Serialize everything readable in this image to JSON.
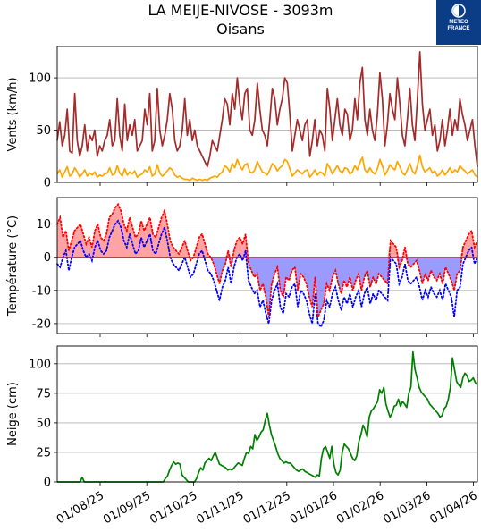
{
  "header": {
    "title": "LA MEIJE-NIVOSE - 3093m",
    "subtitle": "Oisans",
    "logo_line1": "METEO",
    "logo_line2": "FRANCE",
    "logo_color": "#0a3d86"
  },
  "chart_data": [
    {
      "type": "line",
      "ylabel": "Vents (km/h)",
      "ylim": [
        0,
        130
      ],
      "yticks": [
        0,
        50,
        100
      ],
      "grid": true,
      "series": [
        {
          "color": "#a52a2a",
          "values": [
            40,
            58,
            35,
            45,
            70,
            30,
            28,
            85,
            40,
            25,
            35,
            55,
            30,
            45,
            40,
            50,
            25,
            35,
            30,
            40,
            45,
            60,
            35,
            40,
            80,
            45,
            30,
            75,
            40,
            55,
            45,
            60,
            30,
            35,
            40,
            70,
            55,
            85,
            30,
            40,
            90,
            50,
            35,
            45,
            60,
            85,
            70,
            40,
            30,
            35,
            50,
            80,
            45,
            60,
            40,
            50,
            35,
            30,
            25,
            20,
            15,
            25,
            40,
            35,
            30,
            45,
            60,
            80,
            75,
            55,
            85,
            70,
            100,
            75,
            60,
            85,
            90,
            50,
            45,
            60,
            95,
            70,
            50,
            45,
            35,
            60,
            90,
            80,
            55,
            70,
            80,
            100,
            95,
            65,
            30,
            45,
            60,
            50,
            40,
            55,
            60,
            25,
            40,
            60,
            35,
            50,
            45,
            30,
            90,
            70,
            40,
            60,
            80,
            55,
            45,
            70,
            65,
            40,
            50,
            80,
            60,
            95,
            110,
            60,
            45,
            70,
            50,
            40,
            65,
            105,
            80,
            35,
            55,
            85,
            70,
            60,
            100,
            75,
            45,
            35,
            60,
            90,
            55,
            40,
            80,
            125,
            75,
            50,
            60,
            70,
            45,
            55,
            30,
            40,
            60,
            35,
            50,
            70,
            45,
            60,
            50,
            80,
            65,
            55,
            40,
            50,
            60,
            35,
            15
          ]
        },
        {
          "color": "#ffa500",
          "values": [
            8,
            12,
            5,
            10,
            15,
            6,
            8,
            14,
            10,
            5,
            8,
            12,
            6,
            9,
            7,
            10,
            5,
            7,
            6,
            8,
            9,
            14,
            7,
            8,
            16,
            9,
            6,
            13,
            7,
            10,
            8,
            11,
            5,
            7,
            8,
            12,
            10,
            15,
            6,
            8,
            17,
            9,
            6,
            8,
            11,
            14,
            12,
            7,
            5,
            6,
            4,
            3,
            3,
            2,
            4,
            3,
            2,
            3,
            2,
            3,
            2,
            4,
            5,
            6,
            5,
            8,
            10,
            16,
            14,
            10,
            18,
            14,
            22,
            16,
            12,
            17,
            18,
            10,
            9,
            12,
            20,
            15,
            10,
            9,
            7,
            12,
            18,
            16,
            11,
            14,
            16,
            22,
            20,
            13,
            6,
            9,
            12,
            10,
            8,
            11,
            12,
            5,
            8,
            12,
            7,
            10,
            9,
            6,
            18,
            14,
            8,
            12,
            16,
            11,
            9,
            14,
            13,
            8,
            10,
            16,
            12,
            19,
            24,
            12,
            9,
            14,
            10,
            8,
            13,
            22,
            16,
            7,
            11,
            17,
            14,
            12,
            20,
            15,
            9,
            7,
            12,
            18,
            11,
            8,
            16,
            26,
            15,
            10,
            12,
            14,
            9,
            11,
            6,
            8,
            12,
            7,
            10,
            14,
            9,
            12,
            10,
            16,
            13,
            11,
            8,
            10,
            12,
            7,
            5
          ]
        }
      ]
    },
    {
      "type": "area",
      "ylabel": "Température (°C)",
      "ylim": [
        -23,
        18
      ],
      "yticks": [
        -20,
        -10,
        0,
        10
      ],
      "grid": true,
      "series": [
        {
          "name": "",
          "color": "#ff0000",
          "values": [
            10,
            12,
            6,
            8,
            2,
            5,
            8,
            9,
            10,
            7,
            4,
            6,
            3,
            8,
            10,
            6,
            5,
            7,
            12,
            13,
            15,
            16,
            14,
            10,
            8,
            12,
            9,
            6,
            7,
            11,
            8,
            10,
            12,
            7,
            6,
            9,
            12,
            14,
            10,
            5,
            3,
            2,
            1,
            3,
            5,
            2,
            -1,
            0,
            3,
            6,
            7,
            4,
            1,
            0,
            -2,
            -5,
            -8,
            -4,
            -2,
            2,
            -3,
            2,
            5,
            6,
            4,
            7,
            -2,
            -4,
            -6,
            -5,
            -10,
            -8,
            -12,
            -18,
            -8,
            -5,
            -3,
            -10,
            -12,
            -6,
            -7,
            -4,
            -3,
            -10,
            -5,
            -6,
            -8,
            -12,
            -15,
            -6,
            -18,
            -16,
            -14,
            -8,
            -10,
            -6,
            -4,
            -8,
            -11,
            -7,
            -9,
            -6,
            -10,
            -7,
            -5,
            -10,
            -6,
            -4,
            -9,
            -6,
            -8,
            -5,
            -6,
            -7,
            -8,
            5,
            4,
            3,
            -3,
            -1,
            3,
            -2,
            -3,
            -2,
            -1,
            -4,
            -8,
            -5,
            -7,
            -4,
            -6,
            -7,
            -5,
            -8,
            -3,
            -5,
            -7,
            -10,
            -5,
            -4,
            3,
            5,
            7,
            8,
            3,
            5
          ],
          "min_color": "#0000ff",
          "min_values": [
            -2,
            -3,
            0,
            2,
            -4,
            0,
            3,
            4,
            5,
            2,
            0,
            1,
            -1,
            3,
            5,
            2,
            1,
            2,
            6,
            8,
            10,
            11,
            9,
            5,
            3,
            7,
            4,
            1,
            2,
            6,
            3,
            5,
            7,
            2,
            1,
            4,
            7,
            9,
            5,
            0,
            -2,
            -3,
            -4,
            -2,
            0,
            -3,
            -6,
            -5,
            -2,
            1,
            2,
            -1,
            -4,
            -5,
            -7,
            -10,
            -13,
            -9,
            -7,
            -3,
            -8,
            -3,
            0,
            1,
            -1,
            2,
            -7,
            -9,
            -11,
            -10,
            -15,
            -13,
            -17,
            -20,
            -13,
            -10,
            -8,
            -15,
            -17,
            -11,
            -12,
            -9,
            -8,
            -15,
            -10,
            -11,
            -13,
            -17,
            -20,
            -11,
            -20,
            -21,
            -19,
            -13,
            -15,
            -11,
            -9,
            -13,
            -16,
            -12,
            -14,
            -11,
            -15,
            -12,
            -10,
            -15,
            -11,
            -9,
            -14,
            -11,
            -13,
            -10,
            -11,
            -12,
            -13,
            0,
            -1,
            -2,
            -8,
            -6,
            -2,
            -7,
            -8,
            -7,
            -6,
            -9,
            -13,
            -10,
            -12,
            -9,
            -11,
            -12,
            -10,
            -13,
            -8,
            -10,
            -12,
            -18,
            -10,
            -9,
            -2,
            0,
            2,
            3,
            -2,
            0
          ]
        }
      ]
    },
    {
      "type": "line",
      "ylabel": "Neige (cm)",
      "ylim": [
        0,
        115
      ],
      "yticks": [
        0,
        25,
        50,
        75,
        100
      ],
      "grid": true,
      "series": [
        {
          "color": "#008000",
          "values": [
            0,
            0,
            0,
            0,
            0,
            0,
            0,
            0,
            0,
            0,
            0,
            0,
            4,
            0,
            0,
            0,
            0,
            0,
            0,
            0,
            0,
            0,
            0,
            0,
            0,
            0,
            0,
            0,
            0,
            0,
            0,
            0,
            0,
            0,
            0,
            0,
            0,
            0,
            0,
            0,
            0,
            0,
            0,
            0,
            0,
            0,
            0,
            0,
            0,
            0,
            0,
            0,
            3,
            5,
            10,
            14,
            17,
            15,
            16,
            15,
            6,
            4,
            2,
            0,
            0,
            0,
            0,
            3,
            8,
            12,
            10,
            16,
            18,
            20,
            18,
            22,
            25,
            20,
            15,
            14,
            13,
            12,
            10,
            11,
            10,
            12,
            14,
            16,
            15,
            14,
            20,
            25,
            24,
            30,
            28,
            40,
            35,
            38,
            42,
            44,
            52,
            58,
            48,
            40,
            35,
            30,
            24,
            20,
            18,
            16,
            17,
            16,
            16,
            14,
            12,
            10,
            9,
            10,
            11,
            9,
            8,
            7,
            6,
            5,
            4,
            6,
            5,
            20,
            28,
            30,
            25,
            20,
            30,
            15,
            8,
            6,
            10,
            25,
            32,
            30,
            28,
            24,
            20,
            18,
            22,
            34,
            40,
            48,
            44,
            38,
            55,
            60,
            62,
            65,
            68,
            78,
            75,
            80,
            66,
            60,
            55,
            58,
            64,
            65,
            70,
            64,
            68,
            66,
            63,
            75,
            80,
            110,
            95,
            88,
            80,
            76,
            74,
            72,
            70,
            66,
            64,
            62,
            60,
            58,
            55,
            56,
            62,
            64,
            70,
            80,
            105,
            95,
            85,
            82,
            80,
            88,
            92,
            90,
            85,
            86,
            88,
            84,
            82
          ]
        }
      ]
    }
  ],
  "xaxis": {
    "tick_labels": [
      "01/08/25",
      "01/09/25",
      "01/10/25",
      "01/11/25",
      "01/12/25",
      "01/01/26",
      "01/02/26",
      "01/03/26",
      "01/04/26"
    ]
  }
}
